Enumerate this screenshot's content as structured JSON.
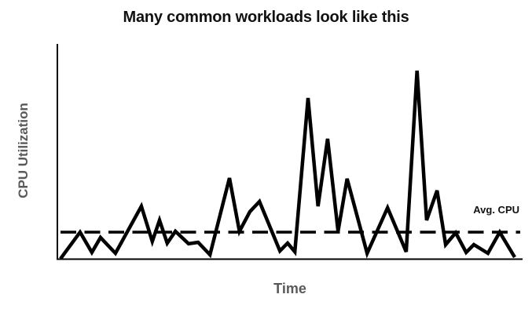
{
  "figure": {
    "title": "Many common workloads look like this",
    "y_axis_label": "CPU Utilization",
    "x_axis_label": "Time",
    "avg_label": "Avg. CPU"
  },
  "colors": {
    "background": "#ffffff",
    "line": "#000000",
    "avg_line": "#000000",
    "axis": "#000000",
    "title_text": "#111111",
    "axis_label_text": "#595959"
  },
  "chart_data": {
    "type": "line",
    "title": "Many common workloads look like this",
    "xlabel": "Time",
    "ylabel": "CPU Utilization",
    "xlim": [
      0,
      100
    ],
    "ylim": [
      0,
      100
    ],
    "grid": false,
    "axis_ticks": "none",
    "legend": "none",
    "annotations": [
      {
        "text": "Avg. CPU",
        "position": "right-of-plot-above-dashed-line"
      }
    ],
    "avg_cpu_value": 12.7,
    "series": [
      {
        "name": "CPU Utilization",
        "style": "solid",
        "points": [
          [
            0,
            0.4
          ],
          [
            4.3,
            12.7
          ],
          [
            6.9,
            3.3
          ],
          [
            8.8,
            10.2
          ],
          [
            12.1,
            2.9
          ],
          [
            17.8,
            24.7
          ],
          [
            20.2,
            8.4
          ],
          [
            21.8,
            18.2
          ],
          [
            23.5,
            7.6
          ],
          [
            25.3,
            13.1
          ],
          [
            28.2,
            7.3
          ],
          [
            30.3,
            8.0
          ],
          [
            32.9,
            2.2
          ],
          [
            37.2,
            37.8
          ],
          [
            39.4,
            13.1
          ],
          [
            40.5,
            17.5
          ],
          [
            41.7,
            22.2
          ],
          [
            43.8,
            26.9
          ],
          [
            48.3,
            4.0
          ],
          [
            50.0,
            7.6
          ],
          [
            51.6,
            3.6
          ],
          [
            54.5,
            74.9
          ],
          [
            56.7,
            24.7
          ],
          [
            58.8,
            56.0
          ],
          [
            61.1,
            13.1
          ],
          [
            63.1,
            37.5
          ],
          [
            67.5,
            2.9
          ],
          [
            72.0,
            24.0
          ],
          [
            76.1,
            3.6
          ],
          [
            78.5,
            87.6
          ],
          [
            80.6,
            18.2
          ],
          [
            82.9,
            32.0
          ],
          [
            84.8,
            6.9
          ],
          [
            87.0,
            12.4
          ],
          [
            89.3,
            3.3
          ],
          [
            91.0,
            6.9
          ],
          [
            94.1,
            2.9
          ],
          [
            96.7,
            12.7
          ],
          [
            100,
            1.1
          ]
        ]
      },
      {
        "name": "Avg. CPU",
        "style": "dashed",
        "points": [
          [
            0,
            12.7
          ],
          [
            100,
            12.7
          ]
        ]
      }
    ]
  }
}
